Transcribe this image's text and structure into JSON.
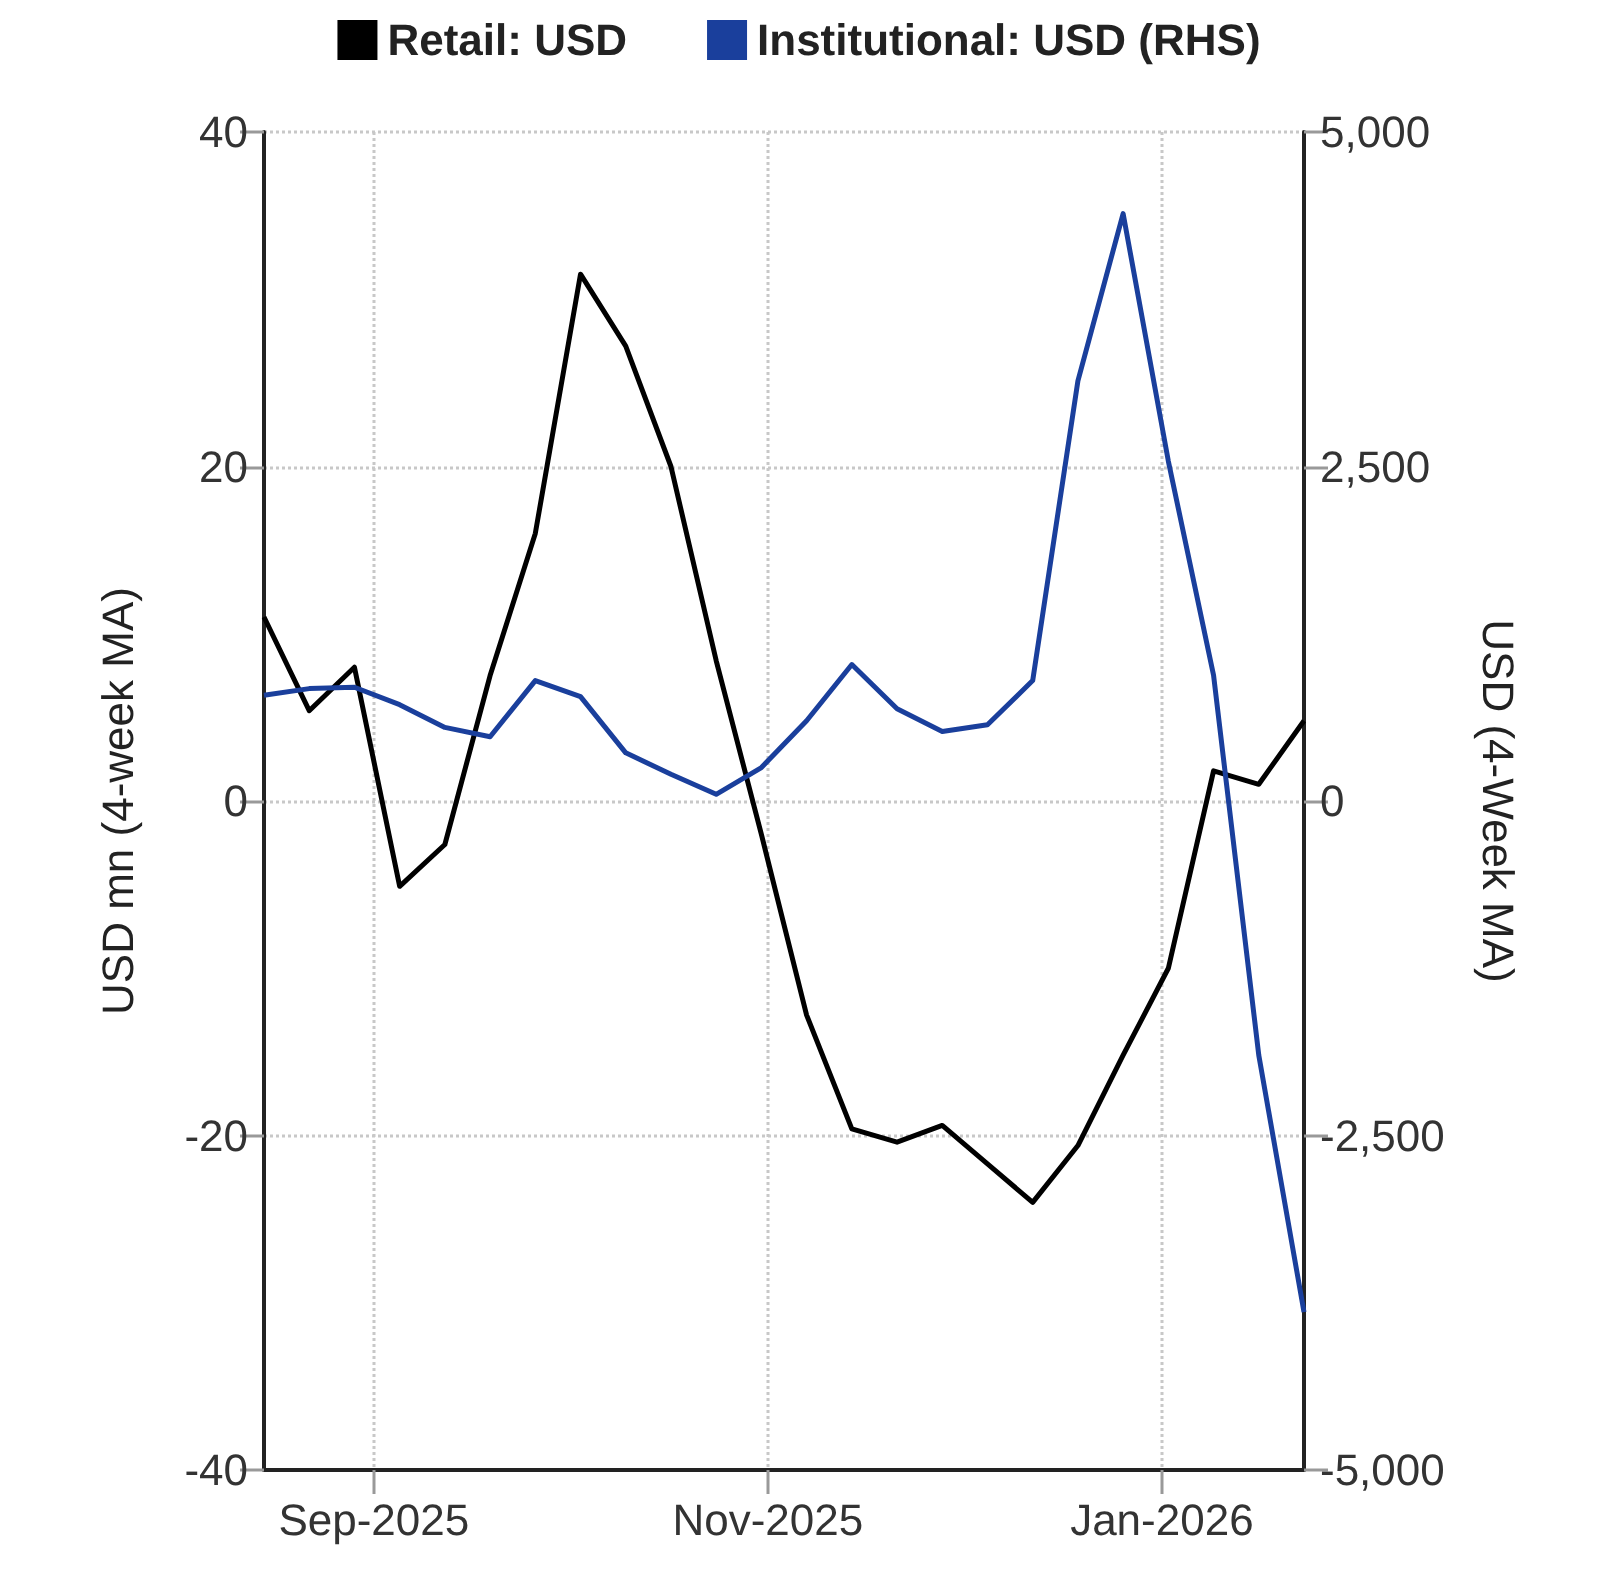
{
  "chart_data": {
    "type": "line",
    "x": [
      "2025-08-15",
      "2025-08-22",
      "2025-08-29",
      "2025-09-05",
      "2025-09-12",
      "2025-09-19",
      "2025-09-26",
      "2025-10-03",
      "2025-10-10",
      "2025-10-17",
      "2025-10-24",
      "2025-10-31",
      "2025-11-07",
      "2025-11-14",
      "2025-11-21",
      "2025-11-28",
      "2025-12-05",
      "2025-12-12",
      "2025-12-19",
      "2025-12-26",
      "2026-01-02",
      "2026-01-09",
      "2026-01-16",
      "2026-01-23"
    ],
    "series": [
      {
        "name": "Retail: USD",
        "color": "#000000",
        "values": [
          11,
          5.4,
          8,
          -5.1,
          -2.6,
          7.5,
          16,
          31.5,
          27.2,
          20,
          8.4,
          -2,
          -12.8,
          -19.6,
          -20.4,
          -19.4,
          -21.7,
          -24,
          -20.6,
          -15.2,
          -10,
          1.8,
          1,
          4.8
        ]
      },
      {
        "name": "Institutional: USD (RHS)",
        "color": "#1a3f9c",
        "axis": "y2",
        "values": [
          790,
          840,
          850,
          720,
          550,
          480,
          900,
          780,
          360,
          200,
          50,
          250,
          600,
          1020,
          690,
          520,
          570,
          900,
          3140,
          4390,
          2540,
          940,
          -1900,
          -3820
        ]
      }
    ],
    "ylabel": "USD mn (4-week MA)",
    "y2label": "USD (4-Week MA)",
    "xlim": [
      "2025-08-15",
      "2026-01-23"
    ],
    "xticks": [
      {
        "value": "2025-09-01",
        "label": "Sep-2025"
      },
      {
        "value": "2025-11-01",
        "label": "Nov-2025"
      },
      {
        "value": "2026-01-01",
        "label": "Jan-2026"
      }
    ],
    "ylim": [
      -40,
      40
    ],
    "yticks": [
      -40,
      -20,
      0,
      20,
      40
    ],
    "y2lim": [
      -5000,
      5000
    ],
    "y2ticks": [
      {
        "value": -5000,
        "label": "-5,000"
      },
      {
        "value": -2500,
        "label": "-2,500"
      },
      0,
      {
        "value": 2500,
        "label": "2,500"
      },
      {
        "value": 5000,
        "label": "5,000"
      }
    ],
    "grid": true,
    "legend": "top",
    "marker": "none",
    "line_style": "solid"
  }
}
